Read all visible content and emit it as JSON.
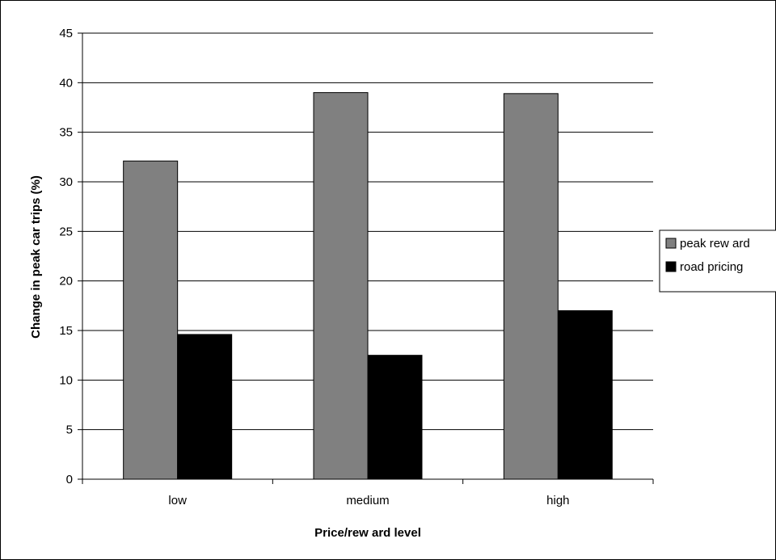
{
  "chart_data": {
    "type": "bar",
    "categories": [
      "low",
      "medium",
      "high"
    ],
    "series": [
      {
        "name": "peak rew ard",
        "values": [
          32.1,
          39.0,
          38.9
        ],
        "color": "#808080"
      },
      {
        "name": "road pricing",
        "values": [
          14.6,
          12.5,
          17.0
        ],
        "color": "#000000"
      }
    ],
    "xlabel": "Price/rew ard level",
    "ylabel": "Change in peak car trips (%)",
    "ylim": [
      0,
      45
    ],
    "yticks": [
      0,
      5,
      10,
      15,
      20,
      25,
      30,
      35,
      40,
      45
    ],
    "grid": true,
    "legend_position": "right"
  }
}
